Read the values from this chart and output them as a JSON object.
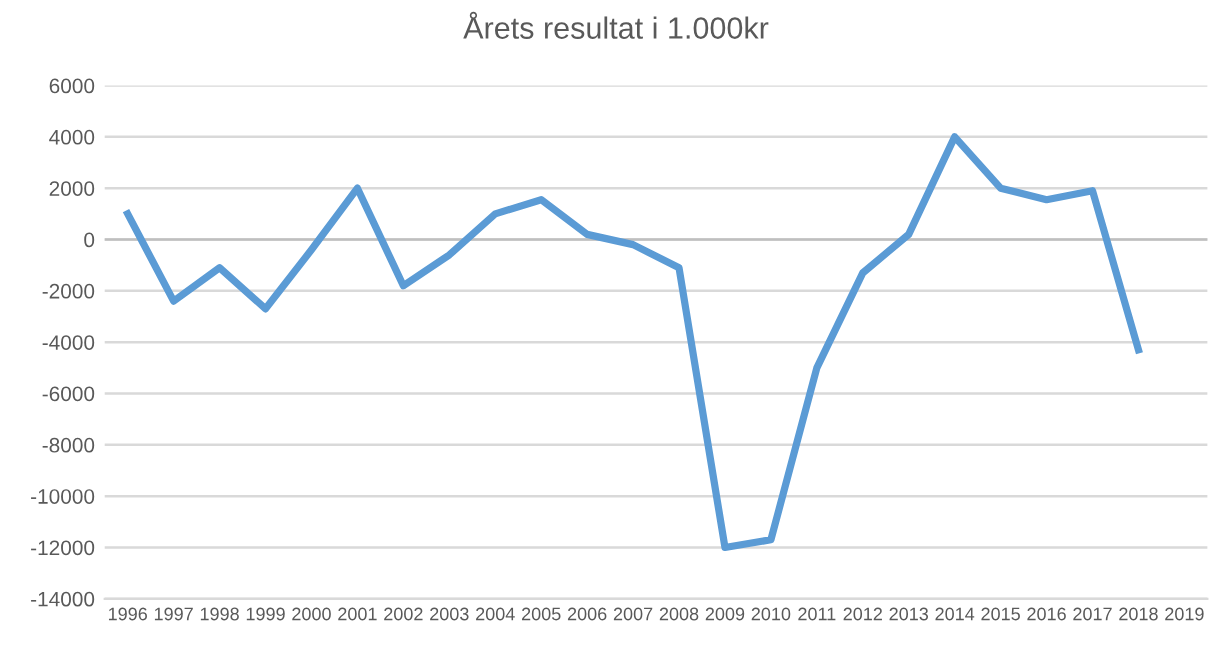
{
  "chart_data": {
    "type": "line",
    "title": "Årets resultat i 1.000kr",
    "categories": [
      "1996",
      "1997",
      "1998",
      "1999",
      "2000",
      "2001",
      "2002",
      "2003",
      "2004",
      "2005",
      "2006",
      "2007",
      "2008",
      "2009",
      "2010",
      "2011",
      "2012",
      "2013",
      "2014",
      "2015",
      "2016",
      "2017",
      "2018",
      "2019"
    ],
    "series": [
      {
        "color": "#5b9bd5",
        "values": [
          1000,
          -2400,
          -1100,
          -2700,
          -400,
          2000,
          -1800,
          -600,
          1000,
          1550,
          200,
          -200,
          -1100,
          -12000,
          -11700,
          -5000,
          -1300,
          200,
          4000,
          2000,
          1550,
          1900,
          -4300,
          null
        ]
      }
    ],
    "ylim": [
      -14000,
      6000
    ],
    "yticks": [
      -14000,
      -12000,
      -10000,
      -8000,
      -6000,
      -4000,
      -2000,
      0,
      2000,
      4000,
      6000
    ],
    "grid": "y",
    "legend": false,
    "marker": "none",
    "line_style": "solid"
  }
}
